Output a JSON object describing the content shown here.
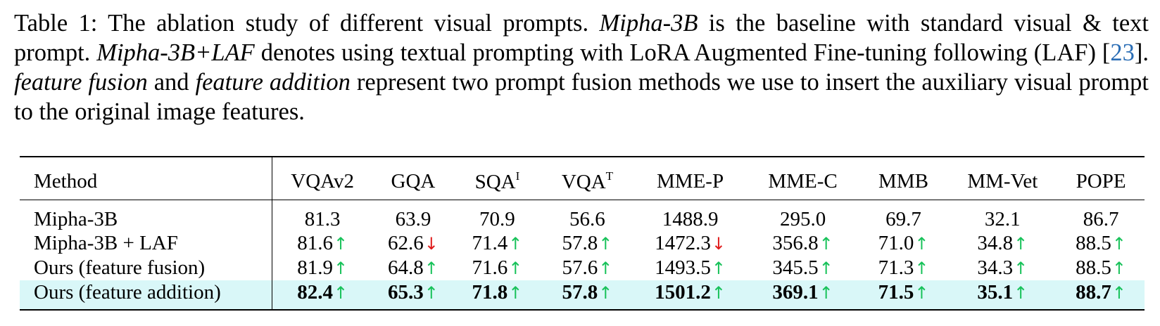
{
  "caption": {
    "p1": "Table 1: The ablation study of different visual prompts. ",
    "e1": "Mipha-3B",
    "p2": " is the baseline with standard visual & text prompt. ",
    "e2": "Mipha-3B+LAF",
    "p3": " denotes using textual prompting with LoRA Augmented Fine-tuning following (LAF) [",
    "ref": "23",
    "p4": "]. ",
    "e3": "feature fusion",
    "p5": " and ",
    "e4": "feature addition",
    "p6": " represent two prompt fusion methods we use to insert the auxiliary visual prompt to the original image features."
  },
  "table": {
    "method_header": "Method",
    "columns": [
      {
        "label": "VQAv2",
        "sup": ""
      },
      {
        "label": "GQA",
        "sup": ""
      },
      {
        "label": "SQA",
        "sup": "I"
      },
      {
        "label": "VQA",
        "sup": "T"
      },
      {
        "label": "MME-P",
        "sup": ""
      },
      {
        "label": "MME-C",
        "sup": ""
      },
      {
        "label": "MMB",
        "sup": ""
      },
      {
        "label": "MM-Vet",
        "sup": ""
      },
      {
        "label": "POPE",
        "sup": ""
      }
    ],
    "rows": [
      {
        "method": "Mipha-3B",
        "values": [
          "81.3",
          "63.9",
          "70.9",
          "56.6",
          "1488.9",
          "295.0",
          "69.7",
          "32.1",
          "86.7"
        ],
        "arrows": [
          "",
          "",
          "",
          "",
          "",
          "",
          "",
          "",
          ""
        ]
      },
      {
        "method": "Mipha-3B + LAF",
        "values": [
          "81.6",
          "62.6",
          "71.4",
          "57.8",
          "1472.3",
          "356.8",
          "71.0",
          "34.8",
          "88.5"
        ],
        "arrows": [
          "up",
          "down",
          "up",
          "up",
          "down",
          "up",
          "up",
          "up",
          "up"
        ]
      },
      {
        "method": "Ours (feature fusion)",
        "values": [
          "81.9",
          "64.8",
          "71.6",
          "57.6",
          "1493.5",
          "345.5",
          "71.3",
          "34.3",
          "88.5"
        ],
        "arrows": [
          "up",
          "up",
          "up",
          "up",
          "up",
          "up",
          "up",
          "up",
          "up"
        ]
      },
      {
        "method": "Ours (feature addition)",
        "values": [
          "82.4",
          "65.3",
          "71.8",
          "57.8",
          "1501.2",
          "369.1",
          "71.5",
          "35.1",
          "88.7"
        ],
        "arrows": [
          "up",
          "up",
          "up",
          "up",
          "up",
          "up",
          "up",
          "up",
          "up"
        ],
        "highlight": true
      }
    ],
    "colors": {
      "up": "#18c25a",
      "down": "#e01b1b",
      "highlight": "#d9f7f8",
      "ref": "#2a6db5"
    }
  }
}
